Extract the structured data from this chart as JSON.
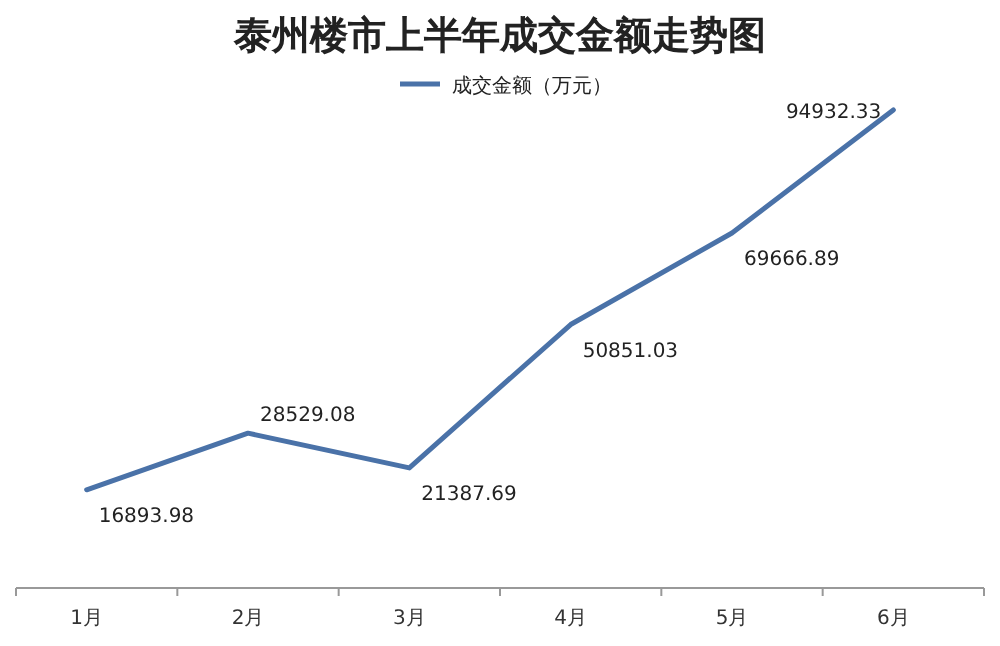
{
  "chart_data": {
    "type": "line",
    "title": "泰州楼市上半年成交金额走势图",
    "categories": [
      "1月",
      "2月",
      "3月",
      "4月",
      "5月",
      "6月"
    ],
    "series": [
      {
        "name": "成交金额（万元）",
        "color": "#4a72a8",
        "values": [
          16893.98,
          28529.08,
          21387.69,
          50851.03,
          69666.89,
          94932.33
        ]
      }
    ],
    "data_labels": true,
    "legend": "top",
    "marker": "none",
    "line_style": "solid"
  }
}
